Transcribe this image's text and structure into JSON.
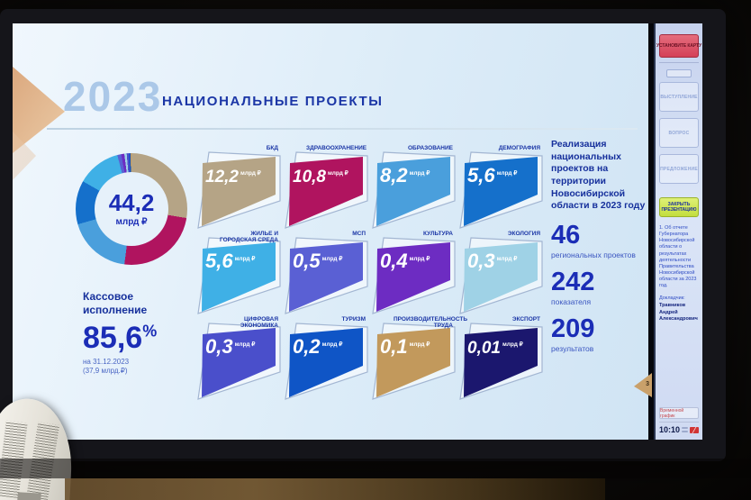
{
  "slide": {
    "year": "2023",
    "title": "НАЦИОНАЛЬНЫЕ ПРОЕКТЫ",
    "donut_center": {
      "value": "44,2",
      "unit": "млрд ₽"
    },
    "cash": {
      "label": "Кассовое исполнение",
      "value": "85,6",
      "percent": "%",
      "note1": "на 31.12.2023",
      "note2": "(37,9 млрд.₽)"
    },
    "tiles": [
      {
        "label": "БКД",
        "value": "12,2",
        "unit": "млрд ₽",
        "color": "#b5a486"
      },
      {
        "label": "ЗДРАВООХРАНЕНИЕ",
        "value": "10,8",
        "unit": "млрд ₽",
        "color": "#b0145f"
      },
      {
        "label": "ОБРАЗОВАНИЕ",
        "value": "8,2",
        "unit": "млрд ₽",
        "color": "#4a9fdc"
      },
      {
        "label": "ДЕМОГРАФИЯ",
        "value": "5,6",
        "unit": "млрд ₽",
        "color": "#1570cb"
      },
      {
        "label": "ЖИЛЬЕ И ГОРОДСКАЯ СРЕДА",
        "value": "5,6",
        "unit": "млрд ₽",
        "color": "#3fb0e6"
      },
      {
        "label": "МСП",
        "value": "0,5",
        "unit": "млрд ₽",
        "color": "#5a60d4"
      },
      {
        "label": "КУЛЬТУРА",
        "value": "0,4",
        "unit": "млрд ₽",
        "color": "#6d2cc2"
      },
      {
        "label": "ЭКОЛОГИЯ",
        "value": "0,3",
        "unit": "млрд ₽",
        "color": "#9fd2e6"
      },
      {
        "label": "ЦИФРОВАЯ ЭКОНОМИКА",
        "value": "0,3",
        "unit": "млрд ₽",
        "color": "#4a4fcb"
      },
      {
        "label": "ТУРИЗМ",
        "value": "0,2",
        "unit": "млрд ₽",
        "color": "#0f55c6"
      },
      {
        "label": "ПРОИЗВОДИТЕЛЬНОСТЬ ТРУДА",
        "value": "0,1",
        "unit": "млрд ₽",
        "color": "#c2995c"
      },
      {
        "label": "ЭКСПОРТ",
        "value": "0,01",
        "unit": "млрд ₽",
        "color": "#1b176e"
      }
    ],
    "summary": {
      "intro": "Реализация национальных проектов на территории Новосибирской области в 2023 году",
      "stats": [
        {
          "value": "46",
          "label": "региональных проектов"
        },
        {
          "value": "242",
          "label": "показателя"
        },
        {
          "value": "209",
          "label": "результатов"
        }
      ]
    },
    "page_number": "3"
  },
  "chart_data": {
    "type": "pie",
    "title": "Национальные проекты 2023",
    "center_label": "44,2 млрд ₽",
    "unit": "млрд ₽",
    "categories": [
      "БКД",
      "ЗДРАВООХРАНЕНИЕ",
      "ОБРАЗОВАНИЕ",
      "ДЕМОГРАФИЯ",
      "ЖИЛЬЕ И ГОРОДСКАЯ СРЕДА",
      "МСП",
      "КУЛЬТУРА",
      "ЭКОЛОГИЯ",
      "ЦИФРОВАЯ ЭКОНОМИКА",
      "ТУРИЗМ",
      "ПРОИЗВОДИТЕЛЬНОСТЬ ТРУДА",
      "ЭКСПОРТ"
    ],
    "values": [
      12.2,
      10.8,
      8.2,
      5.6,
      5.6,
      0.5,
      0.4,
      0.3,
      0.3,
      0.2,
      0.1,
      0.01
    ],
    "total": 44.2,
    "colors": [
      "#b5a486",
      "#b0145f",
      "#4a9fdc",
      "#1570cb",
      "#3fb0e6",
      "#5a60d4",
      "#6d2cc2",
      "#9fd2e6",
      "#4a4fcb",
      "#0f55c6",
      "#c2995c",
      "#1b176e"
    ],
    "legend_position": "none",
    "donut_hole": 0.66
  },
  "console": {
    "install_card_button": "УСТАНОВИТЕ КАРТУ",
    "action_buttons": [
      "ВЫСТУПЛЕНИЕ",
      "ВОПРОС",
      "ПРЕДЛОЖЕНИЕ"
    ],
    "close_button": "ЗАКРЫТЬ ПРЕЗЕНТАЦИЮ",
    "agenda": "1. Об отчете Губернатора Новосибирской области о результатах деятельности Правительства Новосибирской области за 2023 год.",
    "speaker_label": "Докладчик:",
    "speaker_name": "Травников Андрей Александрович",
    "schedule_button": "Временной график",
    "time": "10:10"
  }
}
